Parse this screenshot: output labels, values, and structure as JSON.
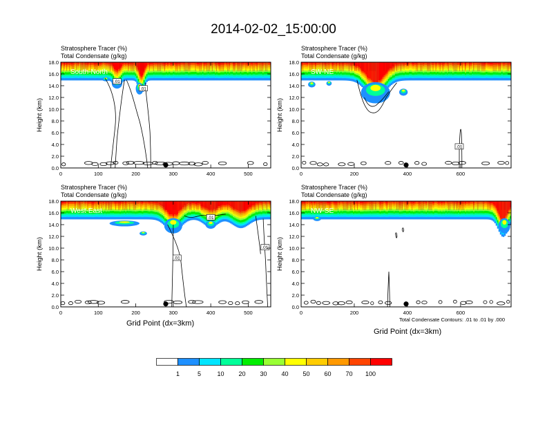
{
  "title": "2014-02-02_15:00:00",
  "panels": [
    {
      "id": "sn",
      "subtitle1": "Stratosphere Tracer   (%)",
      "subtitle2": "Total Condensate   (g/kg)",
      "label": "South-North",
      "xmax": 560,
      "xticks": [
        0,
        100,
        200,
        300,
        400,
        500
      ],
      "marker_x": 280
    },
    {
      "id": "swne",
      "subtitle1": "Stratosphere Tracer   (%)",
      "subtitle2": "Total Condensate   (g/kg)",
      "label": "SW-NE",
      "xmax": 790,
      "xticks": [
        0,
        200,
        400,
        600
      ],
      "marker_x": 395
    },
    {
      "id": "we",
      "subtitle1": "Stratosphere Tracer   (%)",
      "subtitle2": "Total Condensate   (g/kg)",
      "label": "West-East",
      "xmax": 560,
      "xticks": [
        0,
        100,
        200,
        300,
        400,
        500
      ],
      "marker_x": 280
    },
    {
      "id": "nwse",
      "subtitle1": "Stratosphere Tracer   (%)",
      "subtitle2": "Total Condensate   (g/kg)",
      "label": "NW-SE",
      "xmax": 790,
      "xticks": [
        0,
        200,
        400,
        600
      ],
      "marker_x": 395
    }
  ],
  "ylabel": "Height (km)",
  "yticks": [
    "0.0",
    "2.0",
    "4.0",
    "6.0",
    "8.0",
    "10.0",
    "12.0",
    "14.0",
    "16.0",
    "18.0"
  ],
  "xlabel": "Grid Point (dx=3km)",
  "contour_note": "Total Condensate Contours: .01 to .01 by .000",
  "contour_label": ".01",
  "colorbar": {
    "levels": [
      "1",
      "5",
      "10",
      "20",
      "30",
      "40",
      "50",
      "60",
      "70",
      "100"
    ],
    "colors": [
      "#ffffff",
      "#1e90ff",
      "#00e5ff",
      "#00ff99",
      "#00ee00",
      "#99ff33",
      "#ffff00",
      "#ffcc00",
      "#ff9900",
      "#ff4400",
      "#ff0000"
    ]
  },
  "chart_data": {
    "type": "heatmap",
    "title": "2014-02-02_15:00:00",
    "ylabel": "Height (km)",
    "xlabel": "Grid Point (dx=3km)",
    "ylim": [
      0,
      18
    ],
    "series": [
      {
        "name": "South-North",
        "xlim": [
          0,
          560
        ],
        "tracer_top_layer_km": [
          15.5,
          18
        ]
      },
      {
        "name": "SW-NE",
        "xlim": [
          0,
          790
        ],
        "tracer_top_layer_km": [
          15.5,
          18
        ]
      },
      {
        "name": "West-East",
        "xlim": [
          0,
          560
        ],
        "tracer_top_layer_km": [
          15.5,
          18
        ]
      },
      {
        "name": "NW-SE",
        "xlim": [
          0,
          790
        ],
        "tracer_top_layer_km": [
          15.5,
          18
        ]
      }
    ]
  }
}
